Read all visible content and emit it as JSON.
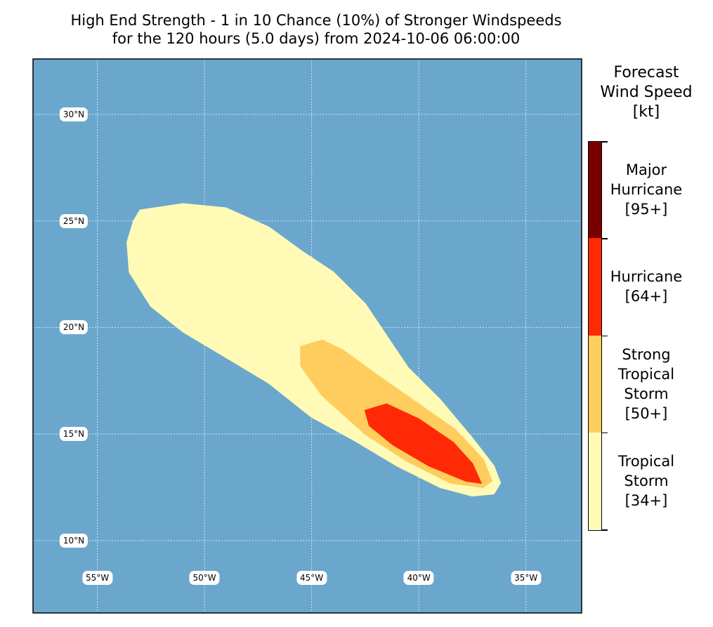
{
  "title": {
    "line1": "High End Strength - 1 in 10 Chance (10%) of Stronger Windspeeds",
    "line2": "for the 120 hours (5.0 days) from 2024-10-06 06:00:00"
  },
  "map": {
    "ocean_color": "#6ba7cc",
    "lat_labels": [
      "30°N",
      "25°N",
      "20°N",
      "15°N",
      "10°N"
    ],
    "lon_labels": [
      "55°W",
      "50°W",
      "45°W",
      "40°W",
      "35°W"
    ],
    "lat_values": [
      30,
      25,
      20,
      15,
      10
    ],
    "lon_values": [
      -55,
      -50,
      -45,
      -40,
      -35
    ],
    "extent": {
      "lon_min": -58,
      "lon_max": -32.4,
      "lat_min": 6.6,
      "lat_max": 32.6
    }
  },
  "wind_zones": [
    {
      "name": "Tropical Storm",
      "color": "#fffbb6",
      "outline": [
        [
          -53,
          25.5
        ],
        [
          -51,
          25.8
        ],
        [
          -49,
          25.6
        ],
        [
          -47,
          24.7
        ],
        [
          -45.5,
          23.6
        ],
        [
          -44,
          22.6
        ],
        [
          -42.5,
          21.1
        ],
        [
          -41.5,
          19.6
        ],
        [
          -40.5,
          18.1
        ],
        [
          -39,
          16.6
        ],
        [
          -37.5,
          14.8
        ],
        [
          -36.5,
          13.5
        ],
        [
          -36.2,
          12.7
        ],
        [
          -36.5,
          12.2
        ],
        [
          -37.5,
          12.1
        ],
        [
          -39,
          12.5
        ],
        [
          -41,
          13.5
        ],
        [
          -43,
          14.7
        ],
        [
          -45,
          15.8
        ],
        [
          -47,
          17.4
        ],
        [
          -49,
          18.6
        ],
        [
          -51,
          19.8
        ],
        [
          -52.5,
          21
        ],
        [
          -53.5,
          22.6
        ],
        [
          -53.6,
          24
        ],
        [
          -53.3,
          25
        ]
      ]
    },
    {
      "name": "Strong Tropical Storm",
      "color": "#fecd5d",
      "outline": [
        [
          -45.5,
          19.1
        ],
        [
          -44.5,
          19.4
        ],
        [
          -43.5,
          18.9
        ],
        [
          -42,
          17.8
        ],
        [
          -40,
          16.4
        ],
        [
          -38.3,
          15.2
        ],
        [
          -37,
          13.8
        ],
        [
          -36.6,
          12.8
        ],
        [
          -37,
          12.5
        ],
        [
          -38.5,
          12.7
        ],
        [
          -40.5,
          13.7
        ],
        [
          -42.5,
          15
        ],
        [
          -44.5,
          16.8
        ],
        [
          -45.5,
          18.2
        ]
      ]
    },
    {
      "name": "Hurricane",
      "color": "#ff2a05",
      "outline": [
        [
          -42.5,
          16.1
        ],
        [
          -41.5,
          16.4
        ],
        [
          -40,
          15.7
        ],
        [
          -38.4,
          14.6
        ],
        [
          -37.5,
          13.6
        ],
        [
          -37.1,
          12.7
        ],
        [
          -37.8,
          12.8
        ],
        [
          -39.5,
          13.5
        ],
        [
          -41.2,
          14.5
        ],
        [
          -42.3,
          15.4
        ]
      ]
    }
  ],
  "legend": {
    "title": "Forecast\nWind Speed\n[kt]",
    "title_lines": [
      "Forecast",
      "Wind Speed",
      "[kt]"
    ],
    "categories": [
      {
        "lines": [
          "Major",
          "Hurricane",
          "[95+]"
        ],
        "color": "#7a0000"
      },
      {
        "lines": [
          "Hurricane",
          "[64+]"
        ],
        "color": "#ff2a05"
      },
      {
        "lines": [
          "Strong",
          "Tropical",
          "Storm",
          "[50+]"
        ],
        "color": "#fecd5d"
      },
      {
        "lines": [
          "Tropical",
          "Storm",
          "[34+]"
        ],
        "color": "#fffbb6"
      }
    ]
  }
}
